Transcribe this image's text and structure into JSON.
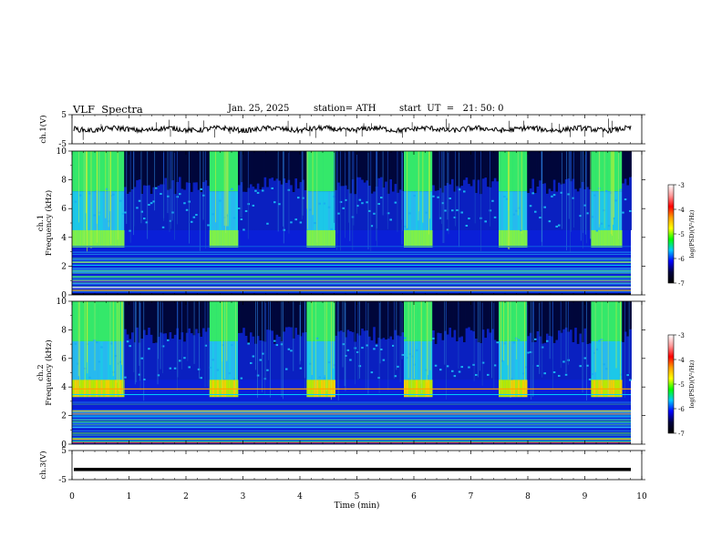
{
  "header": {
    "title": "VLF  Spectra",
    "date": "Jan. 25, 2025",
    "station": "station= ATH",
    "start": "start  UT  =   21: 50: 0"
  },
  "colors": {
    "background": "#ffffff",
    "axis": "#000000",
    "signal": "#000000"
  },
  "colorbar": {
    "label": "log(PSD)(V²/Hz)",
    "ticks": [
      "-3",
      "-4",
      "-5",
      "-6",
      "-7"
    ],
    "colors": [
      "#ffffff",
      "#ff9999",
      "#ff0000",
      "#ffa000",
      "#ffff00",
      "#00ff00",
      "#00c8ff",
      "#0000ff",
      "#000040",
      "#000000"
    ]
  },
  "chart_data": [
    {
      "type": "line",
      "name": "ch1-waveform",
      "ylabel": "ch.1(V)",
      "ylim": [
        -5,
        5
      ],
      "yticks": [
        "5",
        "-5"
      ],
      "x_range": [
        0,
        9.8
      ],
      "description_level": "trace near 0 V with small fluctuations (about ±1 V) and occasional spikes"
    },
    {
      "type": "heatmap",
      "name": "ch1-spectrogram",
      "ylabel": "ch.1 Frequency (kHz)",
      "ylim": [
        0,
        10
      ],
      "yticks": [
        "0",
        "2",
        "4",
        "6",
        "8",
        "10"
      ],
      "x_range": [
        0,
        9.8
      ],
      "high_activity_segments_min": [
        [
          0,
          0.9
        ],
        [
          2.4,
          2.9
        ],
        [
          4.1,
          4.6
        ],
        [
          5.8,
          6.3
        ],
        [
          7.45,
          7.95
        ],
        [
          9.1,
          9.65
        ]
      ],
      "band_khz": [
        3.3,
        4.5
      ],
      "color_scale": "log(PSD)(V²/Hz)",
      "color_range": [
        -7,
        -3
      ]
    },
    {
      "type": "heatmap",
      "name": "ch2-spectrogram",
      "ylabel": "ch.2 Frequency (kHz)",
      "ylim": [
        0,
        10
      ],
      "yticks": [
        "0",
        "2",
        "4",
        "6",
        "8",
        "10"
      ],
      "x_range": [
        0,
        9.8
      ],
      "high_activity_segments_min": [
        [
          0,
          0.9
        ],
        [
          2.4,
          2.9
        ],
        [
          4.1,
          4.6
        ],
        [
          5.8,
          6.3
        ],
        [
          7.45,
          7.95
        ],
        [
          9.1,
          9.65
        ]
      ],
      "band_khz": [
        3.3,
        4.5
      ],
      "color_scale": "log(PSD)(V²/Hz)",
      "color_range": [
        -7,
        -3
      ]
    },
    {
      "type": "line",
      "name": "ch3-waveform",
      "ylabel": "ch.3(V)",
      "ylim": [
        -5,
        5
      ],
      "yticks": [
        "5",
        "-5"
      ],
      "x_range": [
        0,
        9.8
      ],
      "description_level": "flat thick trace at about -1.5 V"
    }
  ],
  "xaxis": {
    "label": "Time  (min)",
    "ticks": [
      "0",
      "1",
      "2",
      "3",
      "4",
      "5",
      "6",
      "7",
      "8",
      "9",
      "10"
    ],
    "range": [
      0,
      10
    ]
  }
}
